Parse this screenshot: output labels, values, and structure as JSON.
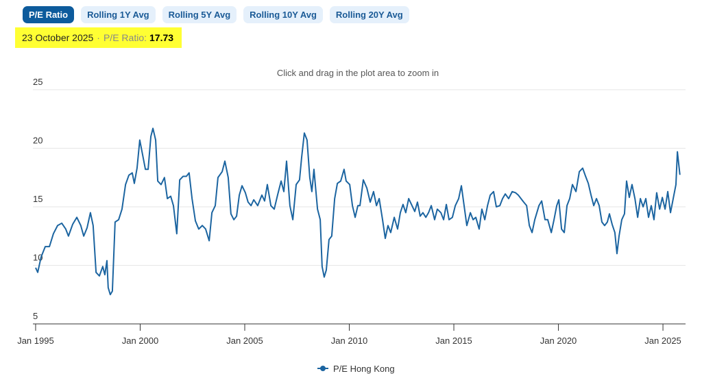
{
  "tabs": [
    "P/E Ratio",
    "Rolling 1Y Avg",
    "Rolling 5Y Avg",
    "Rolling 10Y Avg",
    "Rolling 20Y Avg"
  ],
  "active_tab": 0,
  "selected_info": {
    "date": "23 October 2025",
    "label": "P/E Ratio:",
    "value": 17.73
  },
  "chart_data": {
    "type": "line",
    "subtitle": "Click and drag in the plot area to zoom in",
    "x": [
      1995.0,
      1995.1,
      1995.26,
      1995.46,
      1995.66,
      1995.85,
      1996.05,
      1996.25,
      1996.44,
      1996.57,
      1996.77,
      1996.97,
      1997.16,
      1997.3,
      1997.46,
      1997.62,
      1997.75,
      1997.89,
      1998.05,
      1998.21,
      1998.31,
      1998.41,
      1998.47,
      1998.57,
      1998.67,
      1998.8,
      1998.97,
      1999.13,
      1999.3,
      1999.46,
      1999.62,
      1999.72,
      1999.85,
      1999.98,
      2000.11,
      2000.25,
      2000.38,
      2000.51,
      2000.61,
      2000.74,
      2000.84,
      2001.0,
      2001.16,
      2001.3,
      2001.46,
      2001.59,
      2001.75,
      2001.89,
      2002.05,
      2002.21,
      2002.34,
      2002.48,
      2002.64,
      2002.8,
      2002.97,
      2003.13,
      2003.3,
      2003.43,
      2003.59,
      2003.72,
      2003.92,
      2004.05,
      2004.21,
      2004.34,
      2004.48,
      2004.61,
      2004.74,
      2004.87,
      2005.03,
      2005.16,
      2005.3,
      2005.43,
      2005.62,
      2005.82,
      2005.95,
      2006.08,
      2006.25,
      2006.41,
      2006.57,
      2006.74,
      2006.87,
      2007.0,
      2007.16,
      2007.3,
      2007.46,
      2007.62,
      2007.72,
      2007.85,
      2007.98,
      2008.11,
      2008.21,
      2008.31,
      2008.48,
      2008.61,
      2008.7,
      2008.8,
      2008.9,
      2009.03,
      2009.16,
      2009.3,
      2009.43,
      2009.59,
      2009.75,
      2009.85,
      2010.02,
      2010.15,
      2010.28,
      2010.41,
      2010.51,
      2010.67,
      2010.84,
      2011.0,
      2011.16,
      2011.3,
      2011.43,
      2011.59,
      2011.72,
      2011.85,
      2011.98,
      2012.15,
      2012.31,
      2012.44,
      2012.57,
      2012.7,
      2012.84,
      2013.0,
      2013.13,
      2013.26,
      2013.39,
      2013.52,
      2013.66,
      2013.79,
      2013.92,
      2014.08,
      2014.21,
      2014.38,
      2014.51,
      2014.64,
      2014.77,
      2014.93,
      2015.07,
      2015.23,
      2015.36,
      2015.49,
      2015.62,
      2015.79,
      2015.92,
      2016.05,
      2016.21,
      2016.34,
      2016.48,
      2016.61,
      2016.74,
      2016.9,
      2017.03,
      2017.2,
      2017.33,
      2017.46,
      2017.62,
      2017.79,
      2017.95,
      2018.08,
      2018.21,
      2018.34,
      2018.48,
      2018.61,
      2018.74,
      2018.87,
      2019.07,
      2019.2,
      2019.36,
      2019.49,
      2019.66,
      2019.79,
      2019.92,
      2020.02,
      2020.15,
      2020.28,
      2020.41,
      2020.54,
      2020.67,
      2020.84,
      2021.0,
      2021.16,
      2021.3,
      2021.43,
      2021.56,
      2021.69,
      2021.82,
      2021.95,
      2022.08,
      2022.21,
      2022.34,
      2022.44,
      2022.57,
      2022.7,
      2022.8,
      2022.9,
      2023.03,
      2023.16,
      2023.26,
      2023.39,
      2023.52,
      2023.66,
      2023.79,
      2023.92,
      2024.05,
      2024.18,
      2024.31,
      2024.44,
      2024.57,
      2024.7,
      2024.84,
      2024.97,
      2025.1,
      2025.23,
      2025.36,
      2025.49,
      2025.62,
      2025.69,
      2025.81
    ],
    "series": [
      {
        "name": "P/E Hong Kong",
        "color": "#1b64a0",
        "values": [
          9.8,
          9.4,
          10.7,
          11.6,
          11.6,
          12.7,
          13.4,
          13.6,
          13.1,
          12.5,
          13.5,
          14.1,
          13.4,
          12.5,
          13.2,
          14.5,
          13.4,
          9.4,
          9.1,
          9.9,
          9.2,
          10.4,
          8.1,
          7.5,
          7.8,
          13.7,
          13.9,
          14.8,
          16.9,
          17.7,
          17.9,
          17.0,
          18.3,
          20.7,
          19.5,
          18.2,
          18.2,
          21.0,
          21.7,
          20.7,
          17.2,
          16.9,
          17.5,
          15.7,
          15.9,
          15.1,
          12.7,
          17.3,
          17.6,
          17.6,
          17.9,
          15.7,
          13.8,
          13.1,
          13.4,
          13.1,
          12.1,
          14.5,
          15.1,
          17.5,
          18.0,
          18.9,
          17.5,
          14.4,
          13.9,
          14.2,
          16.0,
          16.8,
          16.2,
          15.4,
          15.1,
          15.6,
          15.1,
          16.0,
          15.5,
          16.9,
          15.1,
          14.8,
          16.0,
          17.2,
          16.3,
          18.9,
          15.1,
          13.9,
          16.9,
          17.3,
          19.2,
          21.3,
          20.7,
          17.5,
          16.3,
          18.2,
          14.8,
          13.9,
          9.9,
          9.0,
          9.6,
          12.2,
          12.5,
          15.7,
          17.0,
          17.2,
          18.2,
          17.2,
          16.9,
          15.1,
          14.1,
          15.1,
          15.1,
          17.3,
          16.6,
          15.4,
          16.3,
          15.1,
          15.7,
          13.9,
          12.3,
          13.4,
          12.8,
          14.1,
          13.1,
          14.5,
          15.2,
          14.5,
          15.7,
          15.1,
          14.6,
          15.4,
          14.2,
          14.5,
          14.1,
          14.5,
          15.1,
          13.9,
          14.8,
          14.5,
          13.9,
          15.2,
          13.9,
          14.1,
          15.1,
          15.7,
          16.8,
          15.1,
          13.4,
          14.5,
          13.9,
          14.1,
          13.1,
          14.8,
          13.9,
          15.1,
          16.0,
          16.3,
          15.0,
          15.1,
          15.7,
          16.1,
          15.7,
          16.3,
          16.2,
          16.0,
          15.7,
          15.4,
          15.1,
          13.4,
          12.8,
          13.9,
          15.1,
          15.5,
          13.9,
          13.9,
          12.8,
          13.9,
          15.1,
          15.6,
          13.1,
          12.8,
          15.1,
          15.7,
          16.9,
          16.3,
          18.0,
          18.3,
          17.6,
          17.0,
          16.0,
          15.1,
          15.7,
          15.1,
          13.7,
          13.4,
          13.7,
          14.4,
          13.5,
          12.8,
          11.0,
          12.5,
          13.9,
          14.4,
          17.2,
          15.8,
          16.9,
          15.7,
          14.1,
          15.7,
          15.0,
          15.7,
          14.1,
          15.1,
          13.9,
          16.2,
          14.8,
          15.8,
          14.8,
          16.3,
          14.5,
          15.7,
          16.9,
          19.7,
          17.73
        ]
      }
    ],
    "xlim": [
      1994.87,
      2026.08
    ],
    "xticks": [
      {
        "value": 1995,
        "label": "Jan 1995"
      },
      {
        "value": 2000,
        "label": "Jan 2000"
      },
      {
        "value": 2005,
        "label": "Jan 2005"
      },
      {
        "value": 2010,
        "label": "Jan 2010"
      },
      {
        "value": 2015,
        "label": "Jan 2015"
      },
      {
        "value": 2020,
        "label": "Jan 2020"
      },
      {
        "value": 2025,
        "label": "Jan 2025"
      }
    ],
    "ylim": [
      5,
      25
    ],
    "yticks": [
      5,
      10,
      15,
      20,
      25
    ],
    "grid": true
  }
}
